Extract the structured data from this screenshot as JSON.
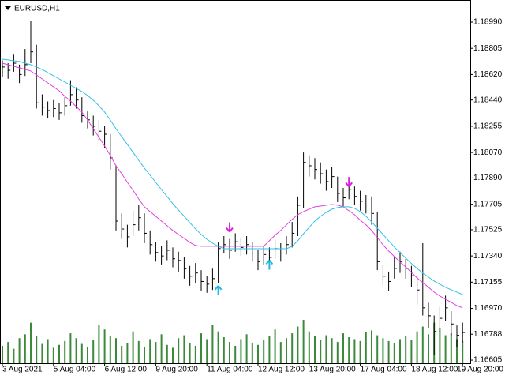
{
  "chart_data": {
    "type": "ohlc",
    "title": "EURUSD,H1",
    "color": "#000000",
    "ylim": [
      1.16583,
      1.19146
    ],
    "yticks": [
      1.16605,
      1.16788,
      {
        "value": 1.1697,
        "label": "1.16970"
      },
      1.17155,
      {
        "value": 1.1734,
        "label": "1.17340"
      },
      1.17525,
      1.17705,
      {
        "value": 1.1789,
        "label": "1.17890"
      },
      {
        "value": 1.1807,
        "label": "1.18070"
      },
      1.18255,
      {
        "value": 1.1844,
        "label": "1.18440"
      },
      {
        "value": 1.1862,
        "label": "1.18620"
      },
      1.18805,
      {
        "value": 1.1899,
        "label": "1.18990"
      }
    ],
    "grid": false,
    "x": [
      "3 Aug 2021",
      null,
      null,
      null,
      null,
      null,
      null,
      null,
      null,
      "5 Aug 04:00",
      null,
      null,
      null,
      null,
      null,
      null,
      null,
      null,
      "6 Aug 12:00",
      null,
      null,
      null,
      null,
      null,
      null,
      null,
      null,
      "9 Aug 20:00",
      null,
      null,
      null,
      null,
      null,
      null,
      null,
      null,
      "11 Aug 04:00",
      null,
      null,
      null,
      null,
      null,
      null,
      null,
      null,
      "12 Aug 12:00",
      null,
      null,
      null,
      null,
      null,
      null,
      null,
      null,
      "13 Aug 20:00",
      null,
      null,
      null,
      null,
      null,
      null,
      null,
      null,
      "17 Aug 04:00",
      null,
      null,
      null,
      null,
      null,
      null,
      null,
      null,
      "18 Aug 12:00",
      null,
      null,
      null,
      null,
      null,
      null,
      null,
      null,
      "19 Aug 20:00"
    ],
    "high": [
      1.1872,
      1.187,
      1.1876,
      1.1869,
      1.188,
      1.19,
      1.1883,
      1.1848,
      1.1843,
      1.1844,
      1.1842,
      1.1846,
      1.1858,
      1.1853,
      1.1846,
      1.1836,
      1.1833,
      1.183,
      1.1826,
      1.182,
      1.1798,
      1.1764,
      1.1756,
      1.1766,
      1.177,
      1.1764,
      1.1752,
      1.1744,
      1.1741,
      1.1745,
      1.174,
      1.1737,
      1.1733,
      1.1727,
      1.1729,
      1.1724,
      1.172,
      1.1725,
      1.1744,
      1.1748,
      1.1746,
      1.175,
      1.1747,
      1.1748,
      1.1744,
      1.1738,
      1.1741,
      1.174,
      1.1745,
      1.1743,
      1.1748,
      1.1758,
      1.1776,
      1.1807,
      1.1805,
      1.1803,
      1.18,
      1.1795,
      1.1797,
      1.179,
      1.1782,
      1.1787,
      1.1783,
      1.178,
      1.1777,
      1.1776,
      1.1765,
      1.1728,
      1.1723,
      1.1733,
      1.1737,
      1.1732,
      1.1727,
      1.172,
      1.1743,
      1.1701,
      1.1692,
      1.1698,
      1.1706,
      1.1695,
      1.1685,
      1.1687
    ],
    "low": [
      1.186,
      1.1859,
      1.1864,
      1.1856,
      1.1861,
      1.187,
      1.1838,
      1.1833,
      1.1831,
      1.1832,
      1.183,
      1.1833,
      1.184,
      1.1838,
      1.1828,
      1.1824,
      1.1819,
      1.1815,
      1.181,
      1.1795,
      1.1752,
      1.1746,
      1.174,
      1.1748,
      1.1752,
      1.1743,
      1.1735,
      1.173,
      1.1728,
      1.1731,
      1.1726,
      1.1723,
      1.1718,
      1.1713,
      1.1715,
      1.1709,
      1.1708,
      1.171,
      1.1715,
      1.1736,
      1.1732,
      1.1737,
      1.1734,
      1.1735,
      1.173,
      1.1724,
      1.1728,
      1.1727,
      1.1732,
      1.173,
      1.1735,
      1.174,
      1.1748,
      1.1768,
      1.179,
      1.1788,
      1.1785,
      1.178,
      1.1782,
      1.1772,
      1.1769,
      1.1774,
      1.177,
      1.1766,
      1.1764,
      1.1756,
      1.1724,
      1.1713,
      1.1709,
      1.1718,
      1.1722,
      1.1718,
      1.1712,
      1.17,
      1.1692,
      1.1683,
      1.1664,
      1.168,
      1.1688,
      1.1678,
      1.167,
      1.1673
    ],
    "close": [
      1.18673,
      1.1865,
      1.187,
      1.1862,
      1.1869,
      1.1878,
      1.1842,
      1.1839,
      1.18366,
      1.1838,
      1.1835,
      1.184,
      1.18478,
      1.1844,
      1.1833,
      1.183,
      1.18255,
      1.1822,
      1.18199,
      1.18032,
      1.17586,
      1.1753,
      1.17475,
      1.1756,
      1.1761,
      1.175,
      1.1742,
      1.17364,
      1.1734,
      1.1738,
      1.1732,
      1.17308,
      1.1725,
      1.17197,
      1.1722,
      1.1716,
      1.17141,
      1.1718,
      1.17392,
      1.1742,
      1.1738,
      1.1744,
      1.174,
      1.1742,
      1.1736,
      1.173,
      1.1735,
      1.1733,
      1.17392,
      1.1736,
      1.1742,
      1.175,
      1.17698,
      1.18,
      1.17976,
      1.1795,
      1.1792,
      1.17865,
      1.179,
      1.17781,
      1.1775,
      1.1781,
      1.1776,
      1.17726,
      1.177,
      1.1764,
      1.173,
      1.17197,
      1.1716,
      1.17252,
      1.173,
      1.17252,
      1.172,
      1.171,
      1.16974,
      1.16918,
      1.16807,
      1.169,
      1.16974,
      1.1686,
      1.1678,
      1.168
    ],
    "lines": [
      {
        "color": "#e040e0",
        "values": [
          1.187,
          1.18689,
          1.18678,
          1.18667,
          1.18656,
          1.18645,
          1.18617,
          1.18589,
          1.18561,
          1.18533,
          1.18505,
          1.18466,
          1.18433,
          1.18394,
          1.18355,
          1.18299,
          1.18238,
          1.18177,
          1.18116,
          1.18049,
          1.17976,
          1.17921,
          1.17859,
          1.17804,
          1.17742,
          1.17687,
          1.17653,
          1.1762,
          1.17586,
          1.17553,
          1.1752,
          1.17492,
          1.17464,
          1.17436,
          1.17414,
          1.17408,
          1.17408,
          1.17408,
          1.17408,
          1.17408,
          1.17408,
          1.17408,
          1.17408,
          1.17408,
          1.17408,
          1.17408,
          1.17408,
          1.17447,
          1.17486,
          1.1752,
          1.17559,
          1.17598,
          1.17631,
          1.17653,
          1.1767,
          1.17687,
          1.17692,
          1.17698,
          1.17703,
          1.17698,
          1.17687,
          1.17659,
          1.17631,
          1.17592,
          1.17559,
          1.1752,
          1.17469,
          1.17419,
          1.17375,
          1.17336,
          1.17297,
          1.17263,
          1.17224,
          1.17185,
          1.17152,
          1.17119,
          1.17085,
          1.17057,
          1.17035,
          1.17013,
          1.1699,
          1.16974
        ]
      },
      {
        "color": "#30c0e8",
        "values": [
          1.18728,
          1.18723,
          1.18717,
          1.18712,
          1.187,
          1.18689,
          1.18673,
          1.18656,
          1.18634,
          1.18611,
          1.18589,
          1.18567,
          1.18544,
          1.18522,
          1.185,
          1.18472,
          1.18439,
          1.184,
          1.18355,
          1.18299,
          1.18238,
          1.18182,
          1.18127,
          1.18071,
          1.18015,
          1.1796,
          1.1791,
          1.17859,
          1.17809,
          1.17759,
          1.17709,
          1.17664,
          1.1762,
          1.17575,
          1.17531,
          1.17492,
          1.17458,
          1.1743,
          1.17408,
          1.17391,
          1.17391,
          1.17391,
          1.17391,
          1.17391,
          1.17391,
          1.17391,
          1.17391,
          1.17391,
          1.17391,
          1.17391,
          1.17391,
          1.17408,
          1.17447,
          1.17497,
          1.17542,
          1.17586,
          1.1762,
          1.17648,
          1.1767,
          1.17681,
          1.17687,
          1.17687,
          1.17676,
          1.17653,
          1.1762,
          1.17581,
          1.17536,
          1.17492,
          1.17447,
          1.17403,
          1.17364,
          1.17325,
          1.17286,
          1.17252,
          1.17219,
          1.17191,
          1.17163,
          1.17141,
          1.17119,
          1.17102,
          1.17085,
          1.17068
        ]
      }
    ],
    "signals": [
      {
        "color": "#20b8e0",
        "direction": "up",
        "x": [
          38,
          47
        ],
        "values": [
          1.1713,
          1.1731
        ]
      },
      {
        "color": "#e020e0",
        "direction": "down",
        "x": [
          40,
          61
        ],
        "values": [
          1.1751,
          1.1783
        ]
      }
    ],
    "volume": {
      "color": "#3a8a3a",
      "values": [
        180,
        220,
        150,
        260,
        300,
        420,
        280,
        200,
        250,
        160,
        190,
        230,
        310,
        260,
        200,
        170,
        240,
        400,
        350,
        280,
        260,
        180,
        210,
        330,
        230,
        170,
        250,
        220,
        300,
        190,
        160,
        260,
        290,
        210,
        180,
        310,
        250,
        400,
        330,
        270,
        220,
        180,
        250,
        300,
        210,
        190,
        240,
        280,
        350,
        220,
        260,
        310,
        380,
        450,
        330,
        280,
        240,
        290,
        260,
        220,
        310,
        270,
        250,
        230,
        320,
        340,
        290,
        260,
        230,
        210,
        250,
        280,
        240,
        330,
        380,
        300,
        420,
        360,
        290,
        310,
        250,
        230
      ]
    }
  }
}
